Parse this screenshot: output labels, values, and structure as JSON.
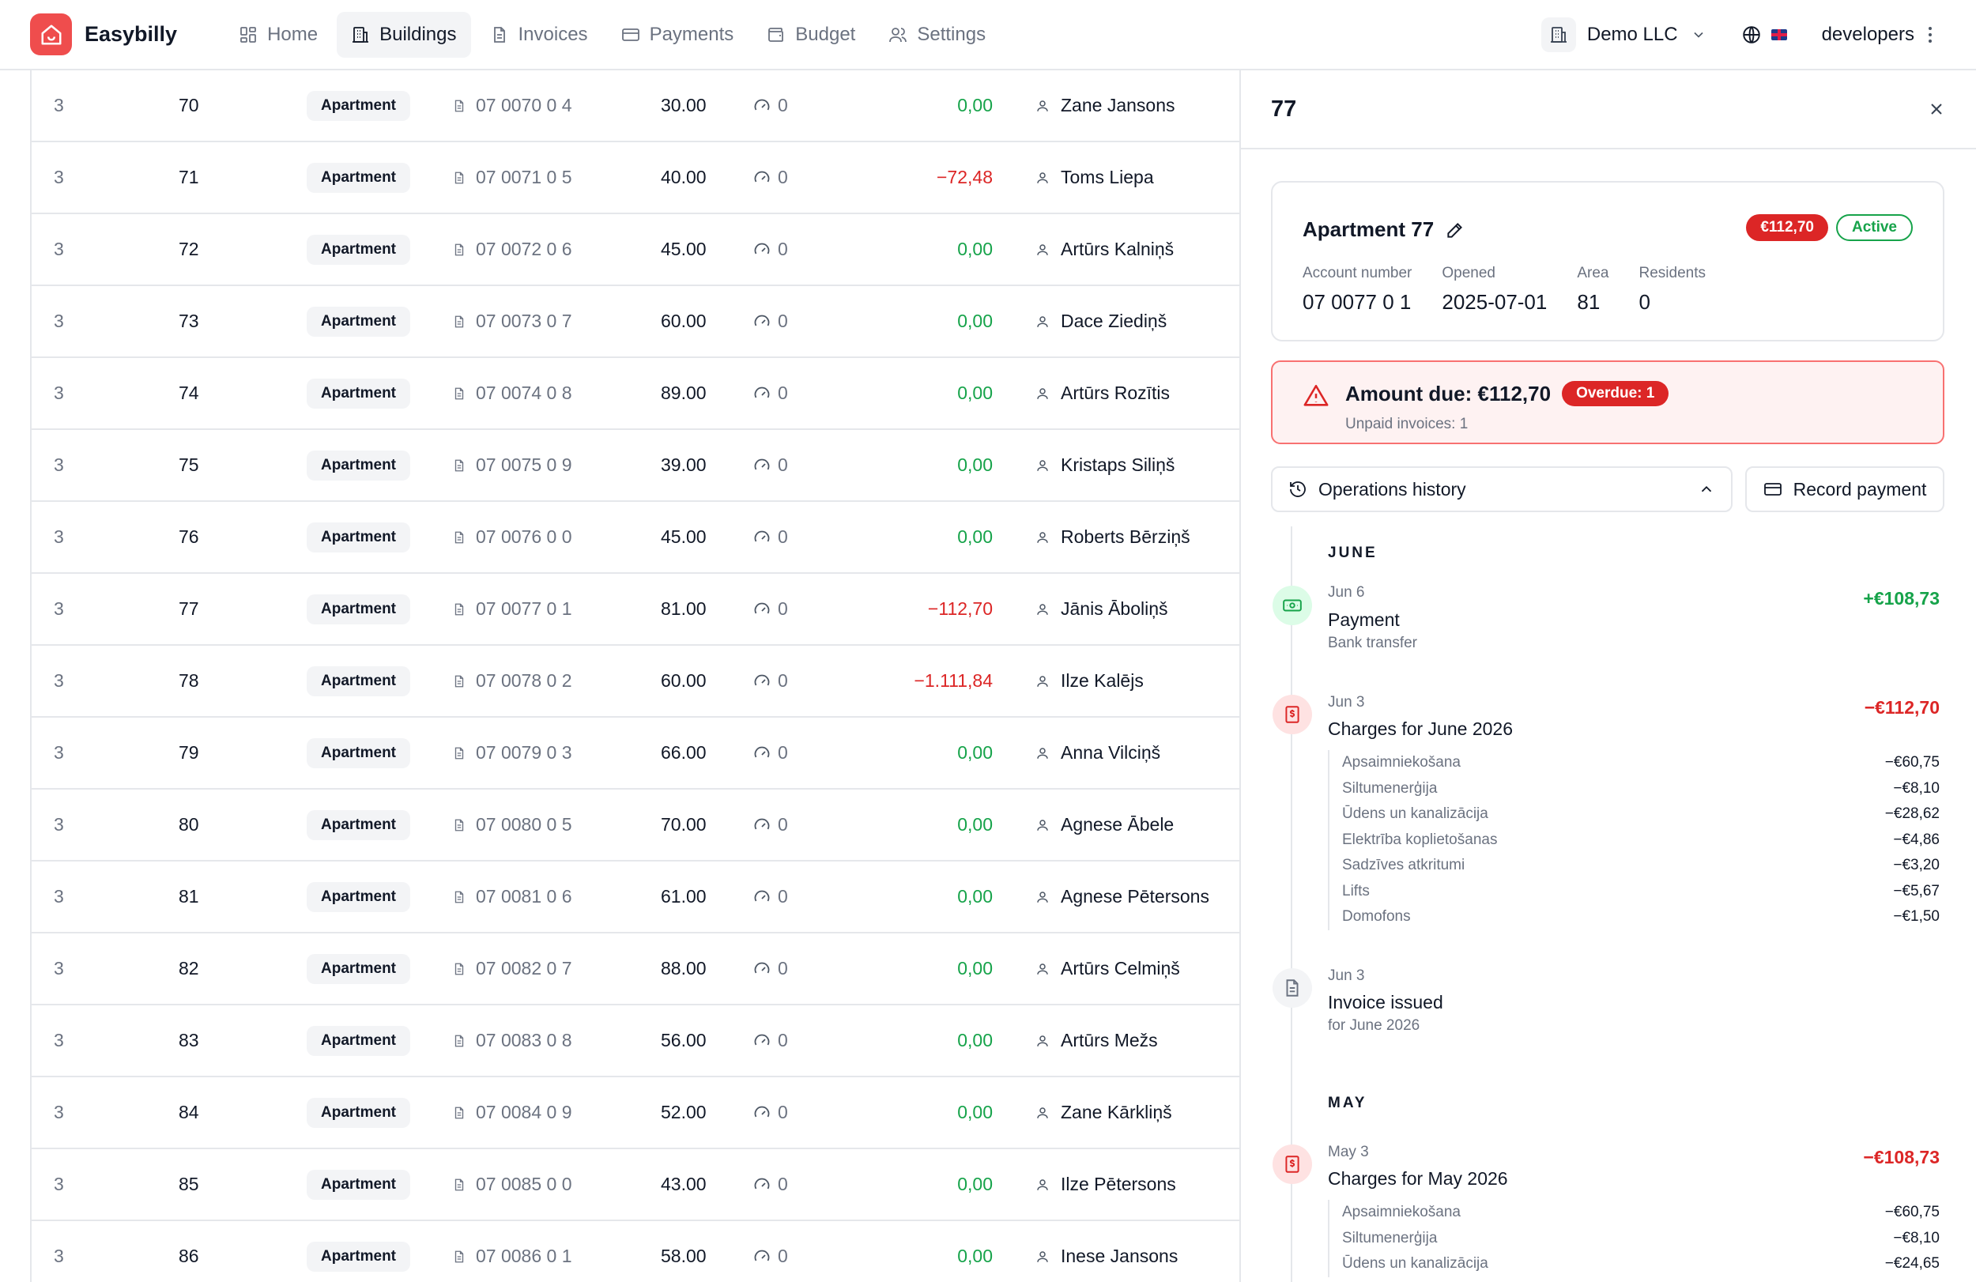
{
  "app": {
    "name": "Easybilly"
  },
  "nav": [
    {
      "key": "home",
      "label": "Home",
      "active": false
    },
    {
      "key": "buildings",
      "label": "Buildings",
      "active": true
    },
    {
      "key": "invoices",
      "label": "Invoices",
      "active": false
    },
    {
      "key": "payments",
      "label": "Payments",
      "active": false
    },
    {
      "key": "budget",
      "label": "Budget",
      "active": false
    },
    {
      "key": "settings",
      "label": "Settings",
      "active": false
    }
  ],
  "header": {
    "org": "Demo LLC",
    "user": "developers"
  },
  "table": {
    "rows": [
      {
        "floor": "3",
        "number": "70",
        "type": "Apartment",
        "account": "07 0070 0 4",
        "area": "30.00",
        "meters": "0",
        "balance": "0,00",
        "negative": false,
        "resident": "Zane Jansons"
      },
      {
        "floor": "3",
        "number": "71",
        "type": "Apartment",
        "account": "07 0071 0 5",
        "area": "40.00",
        "meters": "0",
        "balance": "−72,48",
        "negative": true,
        "resident": "Toms Liepa"
      },
      {
        "floor": "3",
        "number": "72",
        "type": "Apartment",
        "account": "07 0072 0 6",
        "area": "45.00",
        "meters": "0",
        "balance": "0,00",
        "negative": false,
        "resident": "Artūrs Kalniņš"
      },
      {
        "floor": "3",
        "number": "73",
        "type": "Apartment",
        "account": "07 0073 0 7",
        "area": "60.00",
        "meters": "0",
        "balance": "0,00",
        "negative": false,
        "resident": "Dace Ziediņš"
      },
      {
        "floor": "3",
        "number": "74",
        "type": "Apartment",
        "account": "07 0074 0 8",
        "area": "89.00",
        "meters": "0",
        "balance": "0,00",
        "negative": false,
        "resident": "Artūrs Rozītis"
      },
      {
        "floor": "3",
        "number": "75",
        "type": "Apartment",
        "account": "07 0075 0 9",
        "area": "39.00",
        "meters": "0",
        "balance": "0,00",
        "negative": false,
        "resident": "Kristaps Siliņš"
      },
      {
        "floor": "3",
        "number": "76",
        "type": "Apartment",
        "account": "07 0076 0 0",
        "area": "45.00",
        "meters": "0",
        "balance": "0,00",
        "negative": false,
        "resident": "Roberts Bērziņš"
      },
      {
        "floor": "3",
        "number": "77",
        "type": "Apartment",
        "account": "07 0077 0 1",
        "area": "81.00",
        "meters": "0",
        "balance": "−112,70",
        "negative": true,
        "resident": "Jānis Āboliņš"
      },
      {
        "floor": "3",
        "number": "78",
        "type": "Apartment",
        "account": "07 0078 0 2",
        "area": "60.00",
        "meters": "0",
        "balance": "−1.111,84",
        "negative": true,
        "resident": "Ilze Kalējs"
      },
      {
        "floor": "3",
        "number": "79",
        "type": "Apartment",
        "account": "07 0079 0 3",
        "area": "66.00",
        "meters": "0",
        "balance": "0,00",
        "negative": false,
        "resident": "Anna Vilciņš"
      },
      {
        "floor": "3",
        "number": "80",
        "type": "Apartment",
        "account": "07 0080 0 5",
        "area": "70.00",
        "meters": "0",
        "balance": "0,00",
        "negative": false,
        "resident": "Agnese Ābele"
      },
      {
        "floor": "3",
        "number": "81",
        "type": "Apartment",
        "account": "07 0081 0 6",
        "area": "61.00",
        "meters": "0",
        "balance": "0,00",
        "negative": false,
        "resident": "Agnese Pētersons"
      },
      {
        "floor": "3",
        "number": "82",
        "type": "Apartment",
        "account": "07 0082 0 7",
        "area": "88.00",
        "meters": "0",
        "balance": "0,00",
        "negative": false,
        "resident": "Artūrs Celmiņš"
      },
      {
        "floor": "3",
        "number": "83",
        "type": "Apartment",
        "account": "07 0083 0 8",
        "area": "56.00",
        "meters": "0",
        "balance": "0,00",
        "negative": false,
        "resident": "Artūrs Mežs"
      },
      {
        "floor": "3",
        "number": "84",
        "type": "Apartment",
        "account": "07 0084 0 9",
        "area": "52.00",
        "meters": "0",
        "balance": "0,00",
        "negative": false,
        "resident": "Zane Kārkliņš"
      },
      {
        "floor": "3",
        "number": "85",
        "type": "Apartment",
        "account": "07 0085 0 0",
        "area": "43.00",
        "meters": "0",
        "balance": "0,00",
        "negative": false,
        "resident": "Ilze Pētersons"
      },
      {
        "floor": "3",
        "number": "86",
        "type": "Apartment",
        "account": "07 0086 0 1",
        "area": "58.00",
        "meters": "0",
        "balance": "0,00",
        "negative": false,
        "resident": "Inese Jansons"
      }
    ]
  },
  "panel": {
    "title": "77",
    "card": {
      "name": "Apartment 77",
      "amount_badge": "€112,70",
      "status": "Active",
      "fields": [
        {
          "label": "Account number",
          "value": "07 0077 0 1"
        },
        {
          "label": "Opened",
          "value": "2025-07-01"
        },
        {
          "label": "Area",
          "value": "81"
        },
        {
          "label": "Residents",
          "value": "0"
        }
      ]
    },
    "due": {
      "title": "Amount due: €112,70",
      "badge": "Overdue: 1",
      "sub": "Unpaid invoices: 1"
    },
    "ops_label": "Operations history",
    "record_label": "Record payment",
    "months": [
      {
        "label": "JUNE"
      },
      {
        "label": "MAY"
      }
    ],
    "events": [
      {
        "date": "Jun 6",
        "title": "Payment",
        "sub": "Bank transfer",
        "amount": "+€108,73"
      },
      {
        "date": "Jun 3",
        "title": "Charges for June 2026",
        "amount": "−€112,70",
        "lines": [
          {
            "name": "Apsaimniekošana",
            "amount": "−€60,75"
          },
          {
            "name": "Siltumenerģija",
            "amount": "−€8,10"
          },
          {
            "name": "Ūdens un kanalizācija",
            "amount": "−€28,62"
          },
          {
            "name": "Elektrība koplietošanas",
            "amount": "−€4,86"
          },
          {
            "name": "Sadzīves atkritumi",
            "amount": "−€3,20"
          },
          {
            "name": "Lifts",
            "amount": "−€5,67"
          },
          {
            "name": "Domofons",
            "amount": "−€1,50"
          }
        ]
      },
      {
        "date": "Jun 3",
        "title": "Invoice issued",
        "sub": "for June 2026"
      },
      {
        "date": "May 3",
        "title": "Charges for May 2026",
        "amount": "−€108,73",
        "lines": [
          {
            "name": "Apsaimniekošana",
            "amount": "−€60,75"
          },
          {
            "name": "Siltumenerģija",
            "amount": "−€8,10"
          },
          {
            "name": "Ūdens un kanalizācija",
            "amount": "−€24,65"
          }
        ]
      }
    ]
  }
}
